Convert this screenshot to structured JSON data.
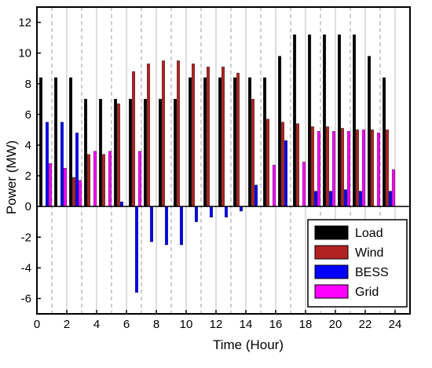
{
  "chart_data": {
    "type": "bar",
    "title": "",
    "xlabel": "Time (Hour)",
    "ylabel": "Power (MW)",
    "xlim": [
      0,
      25
    ],
    "ylim": [
      -7,
      13
    ],
    "x_ticks": [
      0,
      2,
      4,
      6,
      8,
      10,
      12,
      14,
      16,
      18,
      20,
      22,
      24
    ],
    "y_ticks": [
      -6,
      -4,
      -2,
      0,
      2,
      4,
      6,
      8,
      10,
      12
    ],
    "grid": "vertical lines at each hour (solid at even hours, dashed at odd hours)",
    "legend_position": "bottom-right",
    "categories": [
      1,
      2,
      3,
      4,
      5,
      6,
      7,
      8,
      9,
      10,
      11,
      12,
      13,
      14,
      15,
      16,
      17,
      18,
      19,
      20,
      21,
      22,
      23,
      24
    ],
    "series": [
      {
        "name": "Load",
        "color": "#000000",
        "values": [
          8.4,
          8.4,
          8.4,
          7.0,
          7.0,
          7.0,
          7.0,
          7.0,
          7.0,
          7.0,
          8.4,
          8.4,
          8.4,
          8.4,
          8.4,
          8.4,
          9.8,
          11.2,
          11.2,
          11.2,
          11.2,
          11.2,
          9.8,
          8.4
        ]
      },
      {
        "name": "Wind",
        "color": "#b22222",
        "values": [
          0.0,
          0.0,
          1.9,
          3.4,
          3.4,
          6.7,
          8.8,
          9.3,
          9.5,
          9.5,
          9.3,
          9.1,
          9.1,
          8.7,
          7.0,
          5.7,
          5.5,
          5.4,
          5.2,
          5.2,
          5.1,
          5.0,
          5.0,
          5.0
        ]
      },
      {
        "name": "BESS",
        "color": "#0000ff",
        "values": [
          5.5,
          5.5,
          4.8,
          0.0,
          0.0,
          0.3,
          -5.6,
          -2.3,
          -2.5,
          -2.5,
          -1.0,
          -0.7,
          -0.7,
          -0.3,
          1.4,
          0.0,
          4.3,
          0.0,
          1.0,
          1.0,
          1.1,
          1.0,
          0.0,
          1.0
        ]
      },
      {
        "name": "Grid",
        "color": "#ff00ff",
        "values": [
          2.8,
          2.5,
          1.7,
          3.6,
          3.6,
          0.0,
          3.6,
          0.0,
          0.0,
          0.0,
          0.0,
          0.0,
          0.0,
          0.0,
          0.0,
          2.7,
          0.0,
          2.9,
          4.9,
          4.9,
          4.9,
          5.0,
          4.8,
          2.4
        ]
      }
    ]
  }
}
